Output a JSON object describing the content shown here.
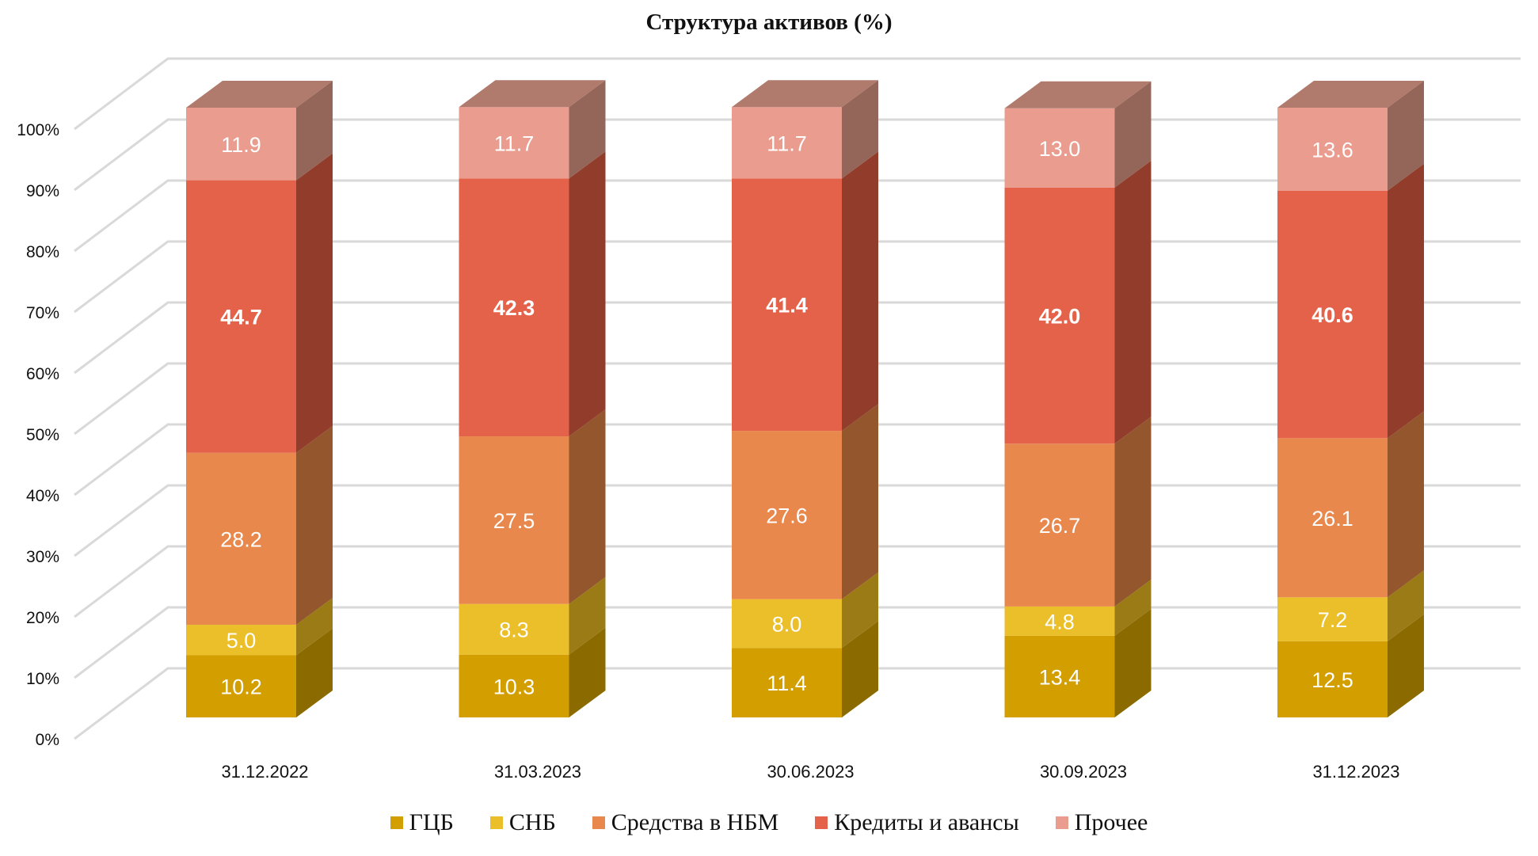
{
  "chart_data": {
    "type": "bar",
    "stacked": true,
    "three_d": true,
    "title": "Структура активов (%)",
    "xlabel": "",
    "ylabel": "",
    "ylim": [
      0,
      100
    ],
    "yticks": [
      "0%",
      "10%",
      "20%",
      "30%",
      "40%",
      "50%",
      "60%",
      "70%",
      "80%",
      "90%",
      "100%"
    ],
    "categories": [
      "31.12.2022",
      "31.03.2023",
      "30.06.2023",
      "30.09.2023",
      "31.12.2023"
    ],
    "series": [
      {
        "name": "ГЦБ",
        "values": [
          10.2,
          10.3,
          11.4,
          13.4,
          12.5
        ],
        "color": "#D29E00",
        "side_color": "#8B6A00",
        "top_color": "#A88000",
        "label_bold": false
      },
      {
        "name": "СНБ",
        "values": [
          5.0,
          8.3,
          8.0,
          4.8,
          7.2
        ],
        "color": "#EBBF29",
        "side_color": "#9A7B16",
        "top_color": "#C49F20",
        "label_bold": false
      },
      {
        "name": "Средства в НБМ",
        "values": [
          28.2,
          27.5,
          27.6,
          26.7,
          26.1
        ],
        "color": "#E9884C",
        "side_color": "#93562D",
        "top_color": "#B5693A",
        "label_bold": false
      },
      {
        "name": "Кредиты и авансы",
        "values": [
          44.7,
          42.3,
          41.4,
          42.0,
          40.6
        ],
        "color": "#E5624A",
        "side_color": "#923C2C",
        "top_color": "#B04B39",
        "label_bold": true
      },
      {
        "name": "Прочее",
        "values": [
          11.9,
          11.7,
          11.7,
          13.0,
          13.6
        ],
        "color": "#EA9C8F",
        "side_color": "#936659",
        "top_color": "#B07A6D",
        "label_bold": false
      }
    ],
    "value_labels": [
      [
        "10.2",
        "10.3",
        "11.4",
        "13.4",
        "12.5"
      ],
      [
        "5.0",
        "8.3",
        "8.0",
        "4.8",
        "7.2"
      ],
      [
        "28.2",
        "27.5",
        "27.6",
        "26.7",
        "26.1"
      ],
      [
        "44.7",
        "42.3",
        "41.4",
        "42.0",
        "40.6"
      ],
      [
        "11.9",
        "11.7",
        "11.7",
        "13.0",
        "13.6"
      ]
    ],
    "grid": true,
    "legend_position": "bottom"
  }
}
